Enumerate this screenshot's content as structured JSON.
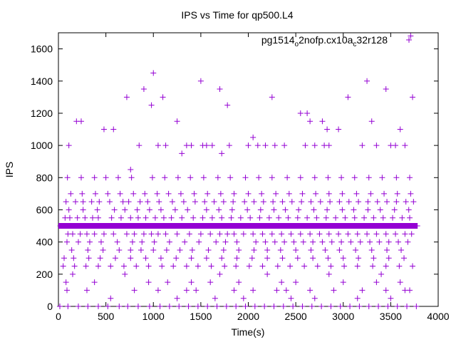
{
  "chart_data": {
    "type": "scatter",
    "title": "IPS vs Time for qp500.L4",
    "xlabel": "Time(s)",
    "ylabel": "IPS",
    "xlim": [
      0,
      4000
    ],
    "ylim": [
      0,
      1700
    ],
    "xticks": [
      0,
      500,
      1000,
      1500,
      2000,
      2500,
      3000,
      3500,
      4000
    ],
    "yticks": [
      0,
      200,
      400,
      600,
      800,
      1000,
      1200,
      1400,
      1600
    ],
    "xtick_labels": [
      "0",
      "500",
      "1000",
      "1500",
      "2000",
      "2500",
      "3000",
      "3500",
      "4000"
    ],
    "ytick_labels": [
      "0",
      "200",
      "400",
      "600",
      "800",
      "1000",
      "1200",
      "1400",
      "1600"
    ],
    "grid": false,
    "legend": "top-right",
    "marker": "plus",
    "color": "#9400d3",
    "series": [
      {
        "name": "pg1514_o2nofp.cx10a_c32r128",
        "legend_parts": {
          "a": "pg1514",
          "b": "o",
          "c": "2nofp.cx10a",
          "d": "c",
          "e": "32r128"
        },
        "x": [
          20,
          40,
          60,
          80,
          100,
          130,
          160,
          200,
          240,
          270,
          300,
          330,
          360,
          400,
          440,
          480,
          520,
          560,
          600,
          640,
          680,
          720,
          760,
          800,
          850,
          900,
          950,
          1000,
          1050,
          1100,
          1150,
          1200,
          1250,
          1300,
          1350,
          1400,
          1450,
          1500,
          1550,
          1600,
          1650,
          1700,
          1750,
          1800,
          1850,
          1900,
          1950,
          2000,
          2050,
          2100,
          2150,
          2200,
          2250,
          2300,
          2350,
          2400,
          2450,
          2500,
          2550,
          2600,
          2650,
          2700,
          2750,
          2800,
          2850,
          2900,
          2950,
          3000,
          3050,
          3100,
          3150,
          3200,
          3250,
          3300,
          3350,
          3400,
          3450,
          3500,
          3550,
          3600,
          3650,
          3700,
          3750,
          3780,
          100,
          150,
          230,
          300,
          380,
          480,
          580,
          720,
          800,
          900,
          980,
          1050,
          1130,
          1250,
          1380,
          1500,
          1600,
          1700,
          1780,
          1850,
          1950,
          2050,
          2150,
          2250,
          2350,
          2450,
          2550,
          2650,
          2750,
          2850,
          2950,
          3050,
          3150,
          3250,
          3350,
          3450,
          3550,
          3650,
          3720,
          70,
          120,
          200,
          280,
          360,
          420,
          560,
          660,
          760,
          840,
          920,
          1020,
          1110,
          1190,
          1300,
          1420,
          1520,
          1620,
          1720,
          1820,
          1920,
          2020,
          2120,
          2220,
          2320,
          2420,
          2520,
          2620,
          2720,
          2820,
          2920,
          3020,
          3120,
          3220,
          3320,
          3420,
          3520,
          3620,
          3700,
          90,
          210,
          330,
          450,
          620,
          780,
          880,
          1010,
          1170,
          1330,
          1480,
          1660,
          1760,
          1880,
          2080,
          2180,
          2280,
          2380,
          2480,
          2580,
          2680,
          2780,
          2880,
          2980,
          3080,
          3180,
          3280,
          3380,
          3480,
          3580,
          3680,
          110,
          260,
          410,
          590,
          700,
          830,
          960,
          1080,
          1230,
          1360,
          1560,
          1690,
          1830,
          1990,
          2130,
          2270,
          2390,
          2530,
          2690,
          2830,
          2990,
          3110,
          3260,
          3390,
          3540,
          3690,
          140,
          310,
          470,
          640,
          760,
          870,
          1000,
          1140,
          1280,
          1410,
          1580,
          1740,
          1900,
          2060,
          2200,
          2340,
          2500,
          2660,
          2810,
          2960,
          3130,
          3300,
          3460,
          3610,
          80,
          180,
          260,
          350,
          430,
          540,
          680,
          740,
          860,
          940,
          1060,
          1200,
          1320,
          1440,
          1540,
          1640,
          1740,
          1840,
          1960,
          2060,
          2160,
          2260,
          2360,
          2460,
          2560,
          2660,
          2760,
          2860,
          2960,
          3060,
          3160,
          3260,
          3360,
          3460,
          3560,
          3660,
          3740,
          60,
          160,
          320,
          440,
          600,
          760,
          920,
          1080,
          1240,
          1400,
          1560,
          1720,
          1880,
          2040,
          2200,
          2360,
          2520,
          2680,
          2840,
          3000,
          3160,
          3320,
          3480,
          3640,
          130,
          250,
          390,
          520,
          650,
          790,
          910,
          1040,
          1160,
          1290,
          1430,
          1570,
          1710,
          1850,
          2000,
          2140,
          2290,
          2430,
          2570,
          2710,
          2850,
          2990,
          3140,
          3290,
          3430,
          3570,
          3710,
          50,
          170,
          290,
          420,
          550,
          690,
          820,
          950,
          1090,
          1210,
          1350,
          1470,
          1610,
          1750,
          1870,
          2010,
          2150,
          2310,
          2440,
          2590,
          2730,
          2870,
          3010,
          3150,
          3310,
          3450,
          3590,
          3730,
          95,
          240,
          380,
          500,
          630,
          770,
          990,
          1120,
          1260,
          1390,
          1530,
          1680,
          1810,
          1970,
          2110,
          2250,
          2410,
          2550,
          2700,
          2840,
          2980,
          3120,
          3270,
          3410,
          3560,
          3700,
          110,
          190,
          240,
          480,
          580,
          720,
          760,
          850,
          900,
          980,
          1000,
          1050,
          1100,
          1130,
          1250,
          1300,
          1350,
          1400,
          1500,
          1520,
          1560,
          1620,
          1700,
          1720,
          1780,
          1800,
          2000,
          2050,
          2100,
          2180,
          2250,
          2280,
          2380,
          2550,
          2600,
          2620,
          2650,
          2700,
          2780,
          2800,
          2830,
          2850,
          2950,
          3050,
          3200,
          3250,
          3300,
          3350,
          3450,
          3500,
          3550,
          3600,
          3650,
          3710,
          3730,
          80,
          90,
          150,
          300,
          380,
          550,
          700,
          800,
          950,
          1050,
          1150,
          1250,
          1350,
          1400,
          1450,
          1600,
          1650,
          1700,
          1850,
          1900,
          1950,
          2050,
          2200,
          2300,
          2350,
          2400,
          2450,
          2500,
          2650,
          2700,
          2850,
          2900,
          3000,
          3150,
          3200,
          3350,
          3400,
          3450,
          3500,
          3600,
          3650,
          3700,
          15,
          100,
          210,
          310,
          420,
          520,
          640,
          730,
          840,
          960,
          1070,
          1170,
          1270,
          1370,
          1470,
          1570,
          1670,
          1770,
          1870,
          1970,
          2070,
          2170,
          2270,
          2370,
          2470,
          2570,
          2670,
          2770,
          2870,
          2970,
          3070,
          3170,
          3270,
          3370,
          3470,
          3570,
          3670,
          3770
        ],
        "y": [
          500,
          500,
          500,
          500,
          500,
          500,
          500,
          500,
          500,
          500,
          500,
          500,
          500,
          500,
          500,
          500,
          500,
          500,
          500,
          500,
          500,
          500,
          500,
          500,
          500,
          500,
          500,
          500,
          500,
          500,
          500,
          500,
          500,
          500,
          500,
          500,
          500,
          500,
          500,
          500,
          500,
          500,
          500,
          500,
          500,
          500,
          500,
          500,
          500,
          500,
          500,
          500,
          500,
          500,
          500,
          500,
          500,
          500,
          500,
          500,
          500,
          500,
          500,
          500,
          500,
          500,
          500,
          500,
          500,
          500,
          500,
          500,
          500,
          500,
          500,
          500,
          500,
          500,
          500,
          500,
          500,
          500,
          500,
          500,
          450,
          450,
          450,
          450,
          450,
          450,
          450,
          450,
          450,
          450,
          450,
          450,
          450,
          450,
          450,
          450,
          450,
          450,
          450,
          450,
          450,
          450,
          450,
          450,
          450,
          450,
          450,
          450,
          450,
          450,
          450,
          450,
          450,
          450,
          450,
          450,
          450,
          450,
          450,
          550,
          550,
          550,
          550,
          550,
          550,
          550,
          550,
          550,
          550,
          550,
          550,
          550,
          550,
          550,
          550,
          550,
          550,
          550,
          550,
          550,
          550,
          550,
          550,
          550,
          550,
          550,
          550,
          550,
          550,
          550,
          550,
          550,
          550,
          550,
          550,
          550,
          550,
          550,
          400,
          400,
          400,
          400,
          400,
          400,
          400,
          400,
          400,
          400,
          400,
          400,
          400,
          400,
          400,
          400,
          400,
          400,
          400,
          400,
          400,
          400,
          400,
          400,
          400,
          400,
          400,
          400,
          400,
          400,
          400,
          600,
          600,
          600,
          600,
          600,
          600,
          600,
          600,
          600,
          600,
          600,
          600,
          600,
          600,
          600,
          600,
          600,
          600,
          600,
          600,
          600,
          600,
          600,
          600,
          600,
          600,
          350,
          350,
          350,
          350,
          350,
          350,
          350,
          350,
          350,
          350,
          350,
          350,
          350,
          350,
          350,
          350,
          350,
          350,
          350,
          350,
          350,
          350,
          350,
          350,
          650,
          650,
          650,
          650,
          650,
          650,
          650,
          650,
          650,
          650,
          650,
          650,
          650,
          650,
          650,
          650,
          650,
          650,
          650,
          650,
          650,
          650,
          650,
          650,
          650,
          650,
          650,
          650,
          650,
          650,
          650,
          650,
          650,
          650,
          650,
          650,
          650,
          300,
          300,
          300,
          300,
          300,
          300,
          300,
          300,
          300,
          300,
          300,
          300,
          300,
          300,
          300,
          300,
          300,
          300,
          300,
          300,
          300,
          300,
          300,
          300,
          700,
          700,
          700,
          700,
          700,
          700,
          700,
          700,
          700,
          700,
          700,
          700,
          700,
          700,
          700,
          700,
          700,
          700,
          700,
          700,
          700,
          700,
          700,
          700,
          700,
          700,
          700,
          250,
          250,
          250,
          250,
          250,
          250,
          250,
          250,
          250,
          250,
          250,
          250,
          250,
          250,
          250,
          250,
          250,
          250,
          250,
          250,
          250,
          250,
          250,
          250,
          250,
          250,
          250,
          250,
          800,
          800,
          800,
          800,
          800,
          800,
          800,
          800,
          800,
          800,
          800,
          800,
          800,
          800,
          800,
          800,
          800,
          800,
          800,
          800,
          800,
          800,
          800,
          800,
          800,
          800,
          1000,
          1150,
          1150,
          1100,
          1100,
          1300,
          850,
          1000,
          1350,
          1250,
          1450,
          1000,
          1300,
          1000,
          1150,
          950,
          1000,
          1000,
          1400,
          1000,
          1000,
          1000,
          1350,
          950,
          1250,
          1000,
          1000,
          1050,
          1000,
          1000,
          1300,
          1000,
          1000,
          1200,
          1000,
          1200,
          1150,
          1000,
          1150,
          1000,
          1100,
          1000,
          1100,
          1300,
          1000,
          1400,
          1150,
          1000,
          1350,
          1000,
          1000,
          1100,
          1000,
          1680,
          1300,
          150,
          100,
          200,
          100,
          150,
          50,
          200,
          100,
          150,
          100,
          150,
          50,
          100,
          150,
          100,
          150,
          50,
          200,
          100,
          150,
          50,
          100,
          200,
          100,
          150,
          100,
          50,
          150,
          100,
          50,
          200,
          100,
          150,
          50,
          100,
          150,
          200,
          100,
          50,
          150,
          100,
          100,
          0,
          0,
          0,
          0,
          0,
          0,
          0,
          0,
          0,
          0,
          0,
          0,
          0,
          0,
          0,
          0,
          0,
          0,
          0,
          0,
          0,
          0,
          0,
          0,
          0,
          0,
          0,
          0,
          0,
          0,
          0,
          0,
          0,
          0,
          0,
          0,
          0,
          0
        ]
      }
    ]
  }
}
